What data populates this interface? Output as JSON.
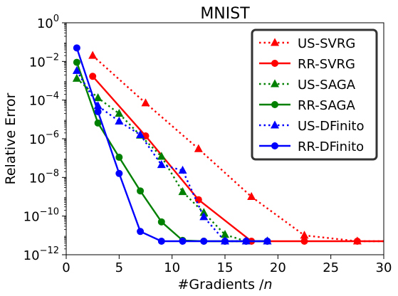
{
  "chart_data": {
    "type": "line",
    "title": "MNIST",
    "xlabel": "#Gradients /n",
    "ylabel": "Relative Error",
    "xlim": [
      0,
      30
    ],
    "ylim_log10": [
      -12,
      0
    ],
    "yscale": "log",
    "x_ticks": [
      0,
      5,
      10,
      15,
      20,
      25,
      30
    ],
    "x_tick_labels": [
      "0",
      "5",
      "10",
      "15",
      "20",
      "25",
      "30"
    ],
    "y_ticks_log10": [
      0,
      -2,
      -4,
      -6,
      -8,
      -10,
      -12
    ],
    "y_tick_labels": [
      "10^0",
      "10^-2",
      "10^-4",
      "10^-6",
      "10^-8",
      "10^-10",
      "10^-12"
    ],
    "grid": false,
    "legend_position": "top-right",
    "series": [
      {
        "name": "US-SVRG",
        "color": "#ff0000",
        "linestyle": "dotted",
        "marker": "triangle",
        "points": [
          [
            2.5,
            0.02
          ],
          [
            7.5,
            7e-05
          ],
          [
            12.5,
            3e-07
          ],
          [
            17.5,
            1e-09
          ],
          [
            22.5,
            1e-11
          ],
          [
            27.5,
            5e-12
          ],
          [
            30,
            5e-12
          ]
        ]
      },
      {
        "name": "RR-SVRG",
        "color": "#ff0000",
        "linestyle": "solid",
        "marker": "circle",
        "points": [
          [
            2.5,
            0.0017
          ],
          [
            7.5,
            1.4e-06
          ],
          [
            12.5,
            7e-10
          ],
          [
            17.5,
            5e-12
          ],
          [
            22.5,
            5e-12
          ],
          [
            27.5,
            5e-12
          ],
          [
            30,
            5e-12
          ]
        ]
      },
      {
        "name": "US-SAGA",
        "color": "#008000",
        "linestyle": "dotted",
        "marker": "triangle",
        "points": [
          [
            1,
            0.0013
          ],
          [
            3,
            0.00013
          ],
          [
            5,
            2e-05
          ],
          [
            7,
            1.5e-06
          ],
          [
            9,
            1.2e-07
          ],
          [
            11,
            1.8e-09
          ],
          [
            13,
            1.5e-10
          ],
          [
            15,
            1.1e-11
          ],
          [
            17,
            5e-12
          ],
          [
            19,
            5e-12
          ]
        ]
      },
      {
        "name": "RR-SAGA",
        "color": "#008000",
        "linestyle": "solid",
        "marker": "circle",
        "points": [
          [
            1,
            0.009
          ],
          [
            3,
            6.5e-06
          ],
          [
            5,
            1.1e-07
          ],
          [
            7,
            2e-09
          ],
          [
            9,
            5e-11
          ],
          [
            11,
            5.5e-12
          ],
          [
            13,
            5e-12
          ],
          [
            15,
            5e-12
          ],
          [
            17,
            5e-12
          ],
          [
            19,
            5e-12
          ]
        ]
      },
      {
        "name": "US-DFinito",
        "color": "#0000ff",
        "linestyle": "dotted",
        "marker": "triangle",
        "points": [
          [
            1,
            0.0033
          ],
          [
            3,
            5e-05
          ],
          [
            5,
            8e-06
          ],
          [
            7,
            1.6e-06
          ],
          [
            9,
            4.5e-08
          ],
          [
            11,
            2.3e-08
          ],
          [
            13,
            9e-11
          ],
          [
            15,
            5e-12
          ],
          [
            17,
            5e-12
          ],
          [
            19,
            5e-12
          ]
        ]
      },
      {
        "name": "RR-DFinito",
        "color": "#0000ff",
        "linestyle": "solid",
        "marker": "circle",
        "points": [
          [
            1,
            0.05
          ],
          [
            3,
            2.5e-05
          ],
          [
            5,
            1.6e-08
          ],
          [
            7,
            1.6e-11
          ],
          [
            9,
            5e-12
          ],
          [
            11,
            5e-12
          ],
          [
            13,
            5e-12
          ],
          [
            15,
            5e-12
          ],
          [
            17,
            5e-12
          ],
          [
            19,
            5e-12
          ]
        ]
      }
    ]
  }
}
